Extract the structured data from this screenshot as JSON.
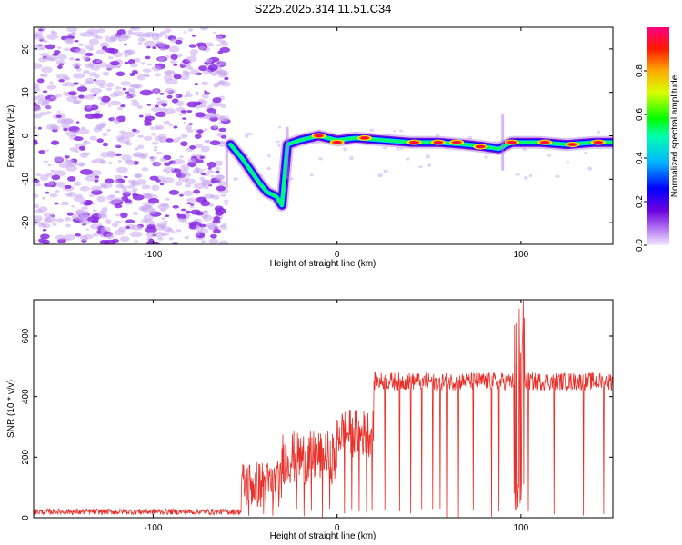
{
  "title": "S225.2025.314.11.51.C34",
  "colors": {
    "series": "#e8302a",
    "axis": "#000000",
    "noise_a": "#8a2be2",
    "noise_b": "#c9a8f0"
  },
  "chart_data": [
    {
      "type": "heatmap",
      "xlabel": "Height of straight line (km)",
      "ylabel": "Frequency (Hz)",
      "xlim": [
        -165,
        150
      ],
      "ylim": [
        -25,
        25
      ],
      "xticks": [
        -100,
        0,
        100
      ],
      "yticks": [
        -20,
        -10,
        0,
        10,
        20
      ],
      "colorbar": {
        "label": "Normalized spectral amplitude",
        "range": [
          0,
          1
        ],
        "ticks": [
          "0.0",
          "0.2",
          "0.4",
          "0.6",
          "0.8"
        ],
        "tick_values": [
          0,
          0.2,
          0.4,
          0.6,
          0.8
        ],
        "colormap": [
          "#f0e0ff",
          "#8a2be2",
          "#0000ff",
          "#00c8ff",
          "#00ff66",
          "#ffff00",
          "#ff6600",
          "#ff0000",
          "#ff0090"
        ]
      },
      "noise_region_x": [
        -165,
        -60
      ],
      "ridge": [
        {
          "x": -58,
          "y": -2
        },
        {
          "x": -52,
          "y": -5
        },
        {
          "x": -47,
          "y": -8
        },
        {
          "x": -42,
          "y": -11
        },
        {
          "x": -38,
          "y": -13
        },
        {
          "x": -33,
          "y": -14
        },
        {
          "x": -30,
          "y": -16
        },
        {
          "x": -27,
          "y": -2
        },
        {
          "x": -20,
          "y": -1
        },
        {
          "x": -10,
          "y": 0
        },
        {
          "x": 0,
          "y": -1
        },
        {
          "x": 10,
          "y": -0.5
        },
        {
          "x": 25,
          "y": -1
        },
        {
          "x": 40,
          "y": -1.5
        },
        {
          "x": 55,
          "y": -1.5
        },
        {
          "x": 70,
          "y": -2
        },
        {
          "x": 80,
          "y": -2.5
        },
        {
          "x": 88,
          "y": -3
        },
        {
          "x": 95,
          "y": -1.5
        },
        {
          "x": 110,
          "y": -1.5
        },
        {
          "x": 125,
          "y": -2
        },
        {
          "x": 140,
          "y": -1.5
        },
        {
          "x": 150,
          "y": -1.5
        }
      ],
      "hotspots": [
        {
          "x": -10,
          "y": 0
        },
        {
          "x": 0,
          "y": -1.5
        },
        {
          "x": 15,
          "y": -0.5
        },
        {
          "x": 42,
          "y": -1.5
        },
        {
          "x": 55,
          "y": -1.5
        },
        {
          "x": 65,
          "y": -1.5
        },
        {
          "x": 78,
          "y": -2.5
        },
        {
          "x": 95,
          "y": -1.5
        },
        {
          "x": 113,
          "y": -1.5
        },
        {
          "x": 128,
          "y": -2
        },
        {
          "x": 142,
          "y": -1.5
        }
      ]
    },
    {
      "type": "line",
      "xlabel": "Height of straight line (km)",
      "ylabel": "SNR (10 * v/v)",
      "xlim": [
        -165,
        150
      ],
      "ylim": [
        0,
        720
      ],
      "xticks": [
        -100,
        0,
        100
      ],
      "yticks": [
        0,
        200,
        400,
        600
      ],
      "series": [
        {
          "name": "SNR",
          "segments": [
            {
              "x": [
                -165,
                -52
              ],
              "level": 20,
              "noise": 10
            },
            {
              "x": [
                -52,
                -30
              ],
              "level": 110,
              "noise": 80
            },
            {
              "x": [
                -30,
                0
              ],
              "level": 200,
              "noise": 90
            },
            {
              "x": [
                0,
                20
              ],
              "level": 280,
              "noise": 80
            },
            {
              "x": [
                20,
                150
              ],
              "level": 450,
              "noise": 30
            }
          ],
          "dips_x": [
            -48,
            -40,
            -35,
            -22,
            -18,
            -14,
            -8,
            -4,
            4,
            8,
            12,
            16,
            19,
            26,
            34,
            40,
            46,
            52,
            56,
            60,
            66,
            74,
            84,
            88,
            104,
            118,
            134,
            145
          ],
          "spike": {
            "x": 99,
            "peak": 720,
            "min": 0
          }
        }
      ]
    }
  ]
}
